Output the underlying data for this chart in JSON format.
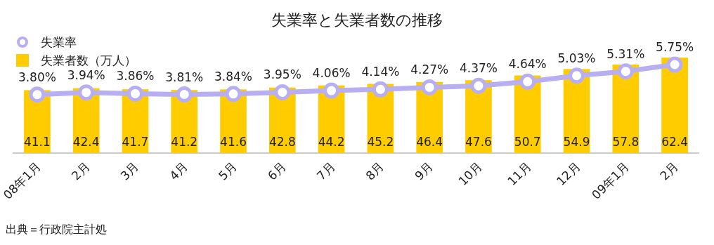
{
  "chart_data": {
    "type": "bar",
    "title": "失業率と失業者数の推移",
    "categories": [
      "08年1月",
      "2月",
      "3月",
      "4月",
      "5月",
      "6月",
      "7月",
      "8月",
      "9月",
      "10月",
      "11月",
      "12月",
      "09年1月",
      "2月"
    ],
    "series": [
      {
        "name": "失業率",
        "type": "line",
        "axis": "y2",
        "color": "#b8aff2",
        "values": [
          3.8,
          3.94,
          3.86,
          3.81,
          3.84,
          3.95,
          4.06,
          4.14,
          4.27,
          4.37,
          4.64,
          5.03,
          5.31,
          5.75
        ],
        "value_labels": [
          "3.80%",
          "3.94%",
          "3.86%",
          "3.81%",
          "3.84%",
          "3.95%",
          "4.06%",
          "4.14%",
          "4.27%",
          "4.37%",
          "4.64%",
          "5.03%",
          "5.31%",
          "5.75%"
        ]
      },
      {
        "name": "失業者数（万人）",
        "color": "#ffcc00",
        "values": [
          41.1,
          42.4,
          41.7,
          41.2,
          41.6,
          42.8,
          44.2,
          45.2,
          46.4,
          47.6,
          50.7,
          54.9,
          57.8,
          62.4
        ],
        "value_labels": [
          "41.1",
          "42.4",
          "41.7",
          "41.2",
          "41.6",
          "42.8",
          "44.2",
          "45.2",
          "46.4",
          "47.6",
          "50.7",
          "54.9",
          "57.8",
          "62.4"
        ]
      }
    ],
    "legend": "top left",
    "marker": "circle",
    "tick_labels": "x",
    "annotations": [
      "出典＝行政院主計処"
    ]
  }
}
